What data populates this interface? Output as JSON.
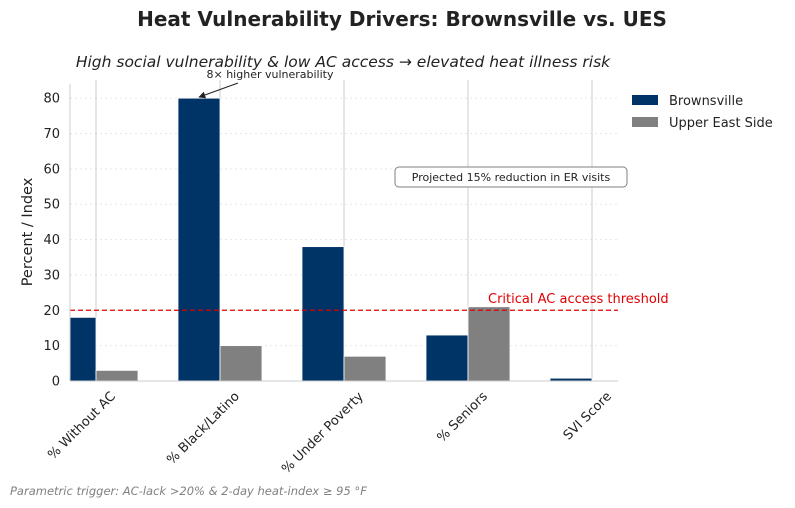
{
  "chart_data": {
    "type": "bar",
    "title": "Heat Vulnerability Drivers: Brownsville vs. UES",
    "subtitle": "High social vulnerability & low AC access → elevated heat illness risk",
    "xlabel": "",
    "ylabel": "Percent / Index",
    "ylim": [
      0,
      84
    ],
    "yticks": [
      0,
      10,
      20,
      30,
      40,
      50,
      60,
      70,
      80
    ],
    "categories": [
      "% Without AC",
      "% Black/Latino",
      "% Under Poverty",
      "% Seniors",
      "SVI Score"
    ],
    "series": [
      {
        "name": "Brownsville",
        "color": "#003366",
        "values": [
          18,
          80,
          38,
          13,
          0.8
        ]
      },
      {
        "name": "Upper East Side",
        "color": "#808080",
        "values": [
          3,
          10,
          7,
          21,
          0.2
        ]
      }
    ],
    "legend_position": "top-right",
    "grid": "horizontal-dotted",
    "threshold": {
      "value": 20,
      "label": "Critical AC access threshold",
      "color": "#e00000"
    },
    "annotations": [
      {
        "text": "8× higher vulnerability",
        "target_category": "% Black/Latino",
        "target_value": 80
      },
      {
        "text": "Projected 15% reduction in ER visits"
      }
    ],
    "footnote": "Parametric trigger: AC-lack >20% & 2-day heat-index ≥ 95 °F"
  }
}
